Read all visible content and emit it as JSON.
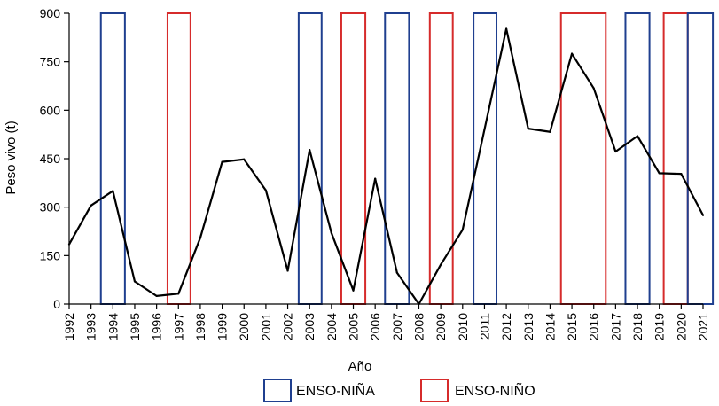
{
  "chart_data": {
    "type": "line",
    "title": "",
    "xlabel": "Año",
    "ylabel": "Peso vivo (t)",
    "ylim": [
      0,
      900
    ],
    "yticks": [
      0,
      150,
      300,
      450,
      600,
      750,
      900
    ],
    "xlim": [
      1992,
      2021
    ],
    "x": [
      1992,
      1993,
      1994,
      1995,
      1996,
      1997,
      1998,
      1999,
      2000,
      2001,
      2002,
      2003,
      2004,
      2005,
      2006,
      2007,
      2008,
      2009,
      2010,
      2011,
      2012,
      2013,
      2014,
      2015,
      2016,
      2017,
      2018,
      2019,
      2020,
      2021
    ],
    "series": [
      {
        "name": "Peso vivo",
        "color": "#000000",
        "values": [
          185,
          305,
          350,
          70,
          25,
          32,
          205,
          440,
          448,
          352,
          103,
          477,
          220,
          42,
          388,
          97,
          0,
          122,
          230,
          540,
          852,
          543,
          533,
          775,
          668,
          472,
          520,
          405,
          403,
          275
        ]
      }
    ],
    "enso_periods": [
      {
        "type": "nina",
        "start": 1993.45,
        "end": 1994.55
      },
      {
        "type": "nino",
        "start": 1996.5,
        "end": 1997.55
      },
      {
        "type": "nina",
        "start": 2002.5,
        "end": 2003.55
      },
      {
        "type": "nino",
        "start": 2004.45,
        "end": 2005.55
      },
      {
        "type": "nina",
        "start": 2006.45,
        "end": 2007.55
      },
      {
        "type": "nino",
        "start": 2008.5,
        "end": 2009.55
      },
      {
        "type": "nina",
        "start": 2010.5,
        "end": 2011.55
      },
      {
        "type": "nino",
        "start": 2014.5,
        "end": 2016.55
      },
      {
        "type": "nina",
        "start": 2017.45,
        "end": 2018.55
      },
      {
        "type": "nino",
        "start": 2019.2,
        "end": 2020.3
      },
      {
        "type": "nina",
        "start": 2020.3,
        "end": 2021.45
      }
    ],
    "legend": [
      {
        "key": "nina",
        "label": "ENSO-NIÑA",
        "color": "#1f3f8f"
      },
      {
        "key": "nino",
        "label": "ENSO-NIÑO",
        "color": "#d62b2b"
      }
    ],
    "legend_position": "bottom"
  }
}
